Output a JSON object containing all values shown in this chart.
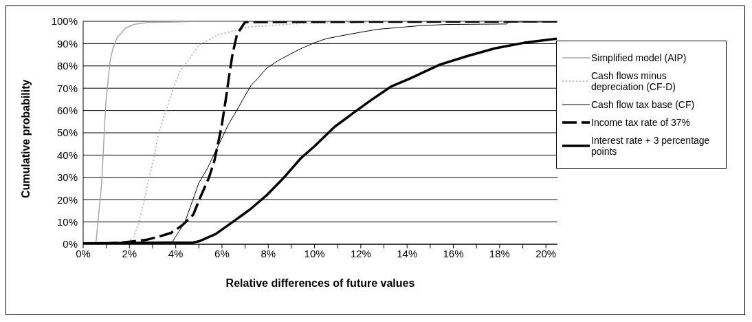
{
  "chart_data": {
    "type": "line",
    "xlabel": "Relative differences of future values",
    "ylabel": "Cumulative probability",
    "xlim": [
      0,
      20.5
    ],
    "ylim": [
      0,
      100
    ],
    "xticks": [
      {
        "value": 0,
        "label": "0%"
      },
      {
        "value": 1,
        "label": null
      },
      {
        "value": 2,
        "label": "2%"
      },
      {
        "value": 3,
        "label": null
      },
      {
        "value": 4,
        "label": "4%"
      },
      {
        "value": 5,
        "label": null
      },
      {
        "value": 6,
        "label": "6%"
      },
      {
        "value": 7,
        "label": null
      },
      {
        "value": 8,
        "label": "8%"
      },
      {
        "value": 9,
        "label": null
      },
      {
        "value": 10,
        "label": "10%"
      },
      {
        "value": 11,
        "label": null
      },
      {
        "value": 12,
        "label": "12%"
      },
      {
        "value": 13,
        "label": null
      },
      {
        "value": 14,
        "label": "14%"
      },
      {
        "value": 15,
        "label": null
      },
      {
        "value": 16,
        "label": "16%"
      },
      {
        "value": 17,
        "label": null
      },
      {
        "value": 18,
        "label": "18%"
      },
      {
        "value": 19,
        "label": null
      },
      {
        "value": 20,
        "label": "20%"
      }
    ],
    "yticks": [
      {
        "value": 0,
        "label": "0%"
      },
      {
        "value": 10,
        "label": "10%"
      },
      {
        "value": 20,
        "label": "20%"
      },
      {
        "value": 30,
        "label": "30%"
      },
      {
        "value": 40,
        "label": "40%"
      },
      {
        "value": 50,
        "label": "50%"
      },
      {
        "value": 60,
        "label": "60%"
      },
      {
        "value": 70,
        "label": "70%"
      },
      {
        "value": 80,
        "label": "80%"
      },
      {
        "value": 90,
        "label": "90%"
      },
      {
        "value": 100,
        "label": "100%"
      }
    ],
    "grid": "y",
    "legend": "right",
    "marker": "none",
    "series": [
      {
        "name": "Simplified model (AIP)",
        "color": "#a6a6a6",
        "line_style": "solid",
        "x": [
          0,
          0.55,
          0.6,
          0.8,
          0.98,
          1.16,
          1.28,
          1.46,
          1.83,
          2.2,
          2.8,
          3.9,
          5,
          20.5
        ],
        "values": [
          0.4,
          0.4,
          5.7,
          27.5,
          63.6,
          82,
          87.6,
          92.6,
          97,
          98.6,
          99.5,
          99.7,
          100,
          100
        ]
      },
      {
        "name": "Cash flows minus depreciation (CF-D)",
        "color": "#a6a6a6",
        "line_style": "dotted",
        "x": [
          0,
          1.46,
          1.95,
          2.2,
          2.38,
          2.62,
          2.8,
          3.05,
          3.23,
          3.48,
          3.66,
          3.9,
          4.2,
          4.5,
          5,
          5.85,
          7.2,
          9.4,
          12,
          20.5
        ],
        "values": [
          0.4,
          0.4,
          1.3,
          3.5,
          9,
          18.8,
          27.5,
          38.5,
          48.3,
          57,
          62.5,
          70.2,
          77.8,
          82,
          89.3,
          94,
          97.5,
          99.1,
          99.7,
          100
        ]
      },
      {
        "name": "Cash flow tax base (CF)",
        "color": "#000000",
        "line_style": "solid",
        "x": [
          0,
          3.84,
          4,
          4.4,
          4.7,
          5,
          5.37,
          5.67,
          5.98,
          6.28,
          6.65,
          6.95,
          7.26,
          7.56,
          7.93,
          8.4,
          8.9,
          9.4,
          10,
          10.5,
          11.5,
          12.7,
          14.5,
          15.7,
          18.3,
          18.4,
          20.5
        ],
        "values": [
          0.4,
          0.8,
          3.5,
          10,
          18.8,
          27.5,
          34,
          40.7,
          47.2,
          53.8,
          60.3,
          65.8,
          71.3,
          74.5,
          79,
          82.2,
          85,
          87.7,
          90.4,
          92.2,
          94.2,
          96.4,
          98,
          98.6,
          98.8,
          99.7,
          99.7
        ]
      },
      {
        "name": "Income tax rate of 37%",
        "color": "#000000",
        "line_style": "dashed",
        "x": [
          0,
          1.1,
          1.7,
          2.7,
          3.3,
          3.8,
          4.27,
          4.76,
          5.06,
          5.43,
          5.67,
          5.98,
          6.16,
          6.34,
          6.46,
          6.65,
          7,
          20.5
        ],
        "values": [
          0.4,
          0.4,
          0.8,
          1.9,
          3.5,
          5.1,
          8.4,
          13.3,
          21,
          29.7,
          37.4,
          52.7,
          64.7,
          77.8,
          85.5,
          94.2,
          99.7,
          100
        ]
      },
      {
        "name": "Interest rate + 3 percentage points",
        "color": "#000000",
        "line_style": "solid",
        "x": [
          0,
          4.76,
          5,
          5.73,
          6.46,
          7.2,
          7.93,
          8.66,
          9.4,
          10,
          10.6,
          10.87,
          11.72,
          12.45,
          13.3,
          14.16,
          15.4,
          16.6,
          17.8,
          19.07,
          20.47
        ],
        "values": [
          0.4,
          0.8,
          1.3,
          4.6,
          10,
          15.5,
          22,
          29.7,
          38.5,
          44,
          50,
          52.7,
          59.2,
          64.7,
          70.7,
          74.5,
          80.5,
          84.4,
          87.9,
          90.4,
          92.2
        ]
      }
    ]
  }
}
